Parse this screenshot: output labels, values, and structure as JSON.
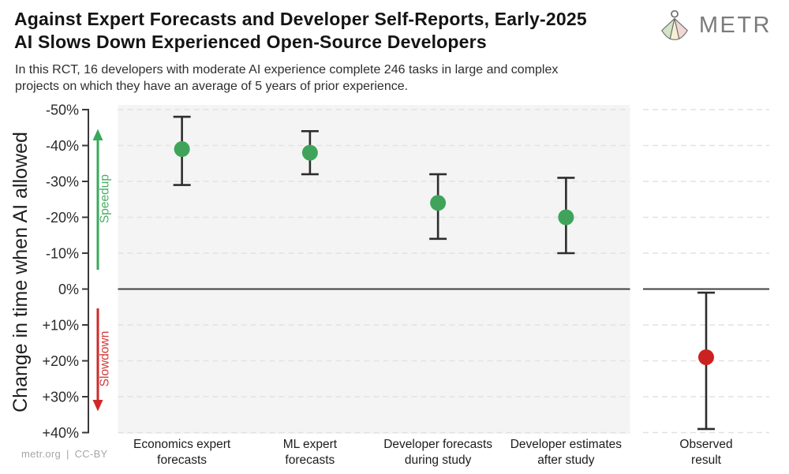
{
  "header": {
    "title_lines": [
      "Against Expert Forecasts and Developer Self-Reports, Early-2025",
      "AI Slows Down Experienced Open-Source Developers"
    ],
    "subtitle_lines": [
      "In this RCT, 16 developers with moderate AI experience complete 246 tasks in large and complex",
      "projects on which they have an average of 5 years of prior experience."
    ],
    "logo_text": "METR"
  },
  "footer": {
    "credit": "metr.org | CC-BY"
  },
  "chart_data": {
    "type": "scatter",
    "title": "Against Expert Forecasts and Developer Self-Reports, Early-2025 AI Slows Down Experienced Open-Source Developers",
    "ylabel": "Change in time when AI allowed",
    "y_axis_inverted": true,
    "ylim": [
      -50,
      40
    ],
    "grid": "dashed-horizontal",
    "zero_line": true,
    "legend_position": "none",
    "y_ticks": [
      {
        "label": "-50%",
        "value": -50
      },
      {
        "label": "-40%",
        "value": -40
      },
      {
        "label": "-30%",
        "value": -30
      },
      {
        "label": "-20%",
        "value": -20
      },
      {
        "label": "-10%",
        "value": -10
      },
      {
        "label": "0%",
        "value": 0
      },
      {
        "label": "+10%",
        "value": 10
      },
      {
        "label": "+20%",
        "value": 20
      },
      {
        "label": "+30%",
        "value": 30
      },
      {
        "label": "+40%",
        "value": 40
      }
    ],
    "annotations": [
      {
        "text": "Speedup",
        "direction": "up",
        "arrow_color": "#3aa85c",
        "text_color": "#4bae66"
      },
      {
        "text": "Slowdown",
        "direction": "down",
        "arrow_color": "#cf2a2a",
        "text_color": "#d43b3b"
      }
    ],
    "panels": [
      {
        "name": "forecasts",
        "background": "#f4f4f4",
        "points": [
          {
            "category_lines": [
              "Economics expert",
              "forecasts"
            ],
            "value": -39,
            "ci": [
              -48,
              -29
            ],
            "color": "#3fa45a"
          },
          {
            "category_lines": [
              "ML expert",
              "forecasts"
            ],
            "value": -38,
            "ci": [
              -44,
              -32
            ],
            "color": "#3fa45a"
          },
          {
            "category_lines": [
              "Developer forecasts",
              "during study"
            ],
            "value": -24,
            "ci": [
              -32,
              -14
            ],
            "color": "#3fa45a"
          },
          {
            "category_lines": [
              "Developer estimates",
              "after study"
            ],
            "value": -20,
            "ci": [
              -31,
              -10
            ],
            "color": "#3fa45a"
          }
        ]
      },
      {
        "name": "observed",
        "background": null,
        "points": [
          {
            "category_lines": [
              "Observed",
              "result"
            ],
            "value": 19,
            "ci": [
              1,
              39
            ],
            "color": "#cc2121"
          }
        ]
      }
    ],
    "style_colors": {
      "error_bar": "#2d2d2d",
      "gridline": "#e2e2e2",
      "zero_line": "#3f3f3f",
      "axis": "#3a3a3a",
      "tick_label": "#2b2b2b",
      "x_label": "#1c1c1c",
      "ylabel_color": "#1f1f1f"
    }
  }
}
